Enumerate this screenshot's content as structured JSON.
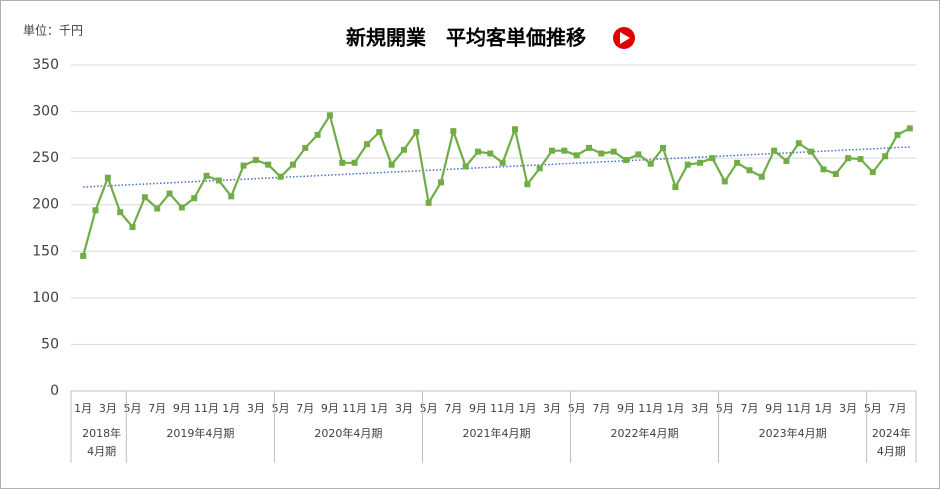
{
  "chart_data": {
    "type": "line",
    "title": "新規開業　平均客単価推移",
    "unit_label": "単位：千円",
    "categories": [
      "1月",
      null,
      "3月",
      null,
      "5月",
      null,
      "7月",
      null,
      "9月",
      null,
      "11月",
      null,
      "1月",
      null,
      "3月",
      null,
      "5月",
      null,
      "7月",
      null,
      "9月",
      null,
      "11月",
      null,
      "1月",
      null,
      "3月",
      null,
      "5月",
      null,
      "7月",
      null,
      "9月",
      null,
      "11月",
      null,
      "1月",
      null,
      "3月",
      null,
      "5月",
      null,
      "7月",
      null,
      "9月",
      null,
      "11月",
      null,
      "1月",
      null,
      "3月",
      null,
      "5月",
      null,
      "7月",
      null,
      "9月",
      null,
      "11月",
      null,
      "1月",
      null,
      "3月",
      null,
      "5月",
      null,
      "7月",
      null
    ],
    "periods": [
      {
        "label": "2018年4月期",
        "span": 4
      },
      {
        "label": "2019年4月期",
        "span": 12
      },
      {
        "label": "2020年4月期",
        "span": 12
      },
      {
        "label": "2021年4月期",
        "span": 12
      },
      {
        "label": "2022年4月期",
        "span": 12
      },
      {
        "label": "2023年4月期",
        "span": 12
      },
      {
        "label": "2024年4月期",
        "span": 4
      }
    ],
    "series": [
      {
        "color": "#70ad47",
        "values": [
          145,
          194,
          229,
          192,
          176,
          208,
          196,
          212,
          197,
          207,
          231,
          226,
          209,
          242,
          248,
          243,
          230,
          243,
          261,
          275,
          296,
          245,
          245,
          265,
          278,
          243,
          259,
          278,
          202,
          224,
          279,
          241,
          257,
          255,
          245,
          281,
          222,
          239,
          258,
          258,
          253,
          261,
          255,
          257,
          248,
          254,
          244,
          261,
          219,
          243,
          245,
          250,
          225,
          245,
          237,
          230,
          258,
          247,
          266,
          257,
          238,
          233,
          250,
          249,
          235,
          252,
          275,
          282
        ]
      }
    ],
    "trendline": {
      "color": "#4472c4",
      "start": 219,
      "end": 262
    },
    "ylim": [
      0,
      350
    ],
    "yticks": [
      0,
      50,
      100,
      150,
      200,
      250,
      300,
      350
    ],
    "grid": true
  }
}
